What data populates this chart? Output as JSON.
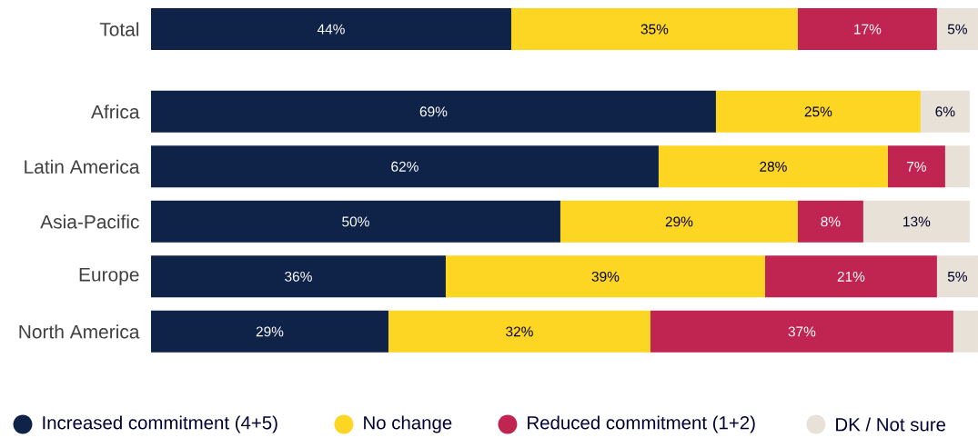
{
  "chart_data": {
    "type": "bar",
    "orientation": "horizontal",
    "stacked": true,
    "legend": "bottom",
    "categories": [
      "Total",
      "Africa",
      "Latin America",
      "Asia-Pacific",
      "Europe",
      "North America"
    ],
    "series": [
      {
        "name": "Increased commitment (4+5)",
        "color": "#0f2348",
        "values": [
          44,
          69,
          62,
          50,
          36,
          29
        ],
        "value_labels": [
          "44%",
          "69%",
          "62%",
          "50%",
          "36%",
          "29%"
        ]
      },
      {
        "name": "No change",
        "color": "#fdd623",
        "values": [
          35,
          25,
          28,
          29,
          39,
          32
        ],
        "value_labels": [
          "35%",
          "25%",
          "28%",
          "29%",
          "39%",
          "32%"
        ]
      },
      {
        "name": "Reduced commitment (1+2)",
        "color": "#c02552",
        "values": [
          17,
          null,
          7,
          8,
          21,
          37
        ],
        "value_labels": [
          "17%",
          null,
          "7%",
          "8%",
          "21%",
          "37%"
        ]
      },
      {
        "name": "DK / Not sure",
        "color": "#e8e1d8",
        "values": [
          5,
          6,
          3,
          13,
          5,
          3
        ],
        "value_labels": [
          "5%",
          "6%",
          null,
          "13%",
          "5%",
          null
        ]
      }
    ]
  }
}
